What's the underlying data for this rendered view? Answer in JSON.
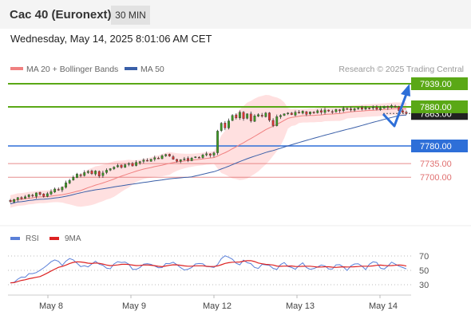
{
  "header": {
    "title": "Cac 40 (Euronext)",
    "interval": "30 MIN"
  },
  "datetime": "Wednesday, May 14, 2025 8:01:06 AM CET",
  "legend": {
    "ma20": "MA 20 + Bollinger Bands",
    "ma50": "MA 50",
    "credit": "Research © 2025 Trading Central"
  },
  "colors": {
    "ma20": "#f08080",
    "ma50": "#3a5fa8",
    "band": "#ffd5d5",
    "resistance": "#5aa816",
    "support": "#2e6fd8",
    "support_light": "#e07070",
    "rsi": "#5a7fd8",
    "rsi_ma": "#dd2222",
    "arrow": "#2e6fd8"
  },
  "chart_data": [
    {
      "type": "candlestick",
      "x_labels": [
        "May 8",
        "May 9",
        "May 12",
        "May 13",
        "May 14"
      ],
      "ylim": [
        7640,
        7960
      ],
      "levels": [
        {
          "value": 7939.0,
          "label": "7939.00",
          "style": "resistance"
        },
        {
          "value": 7880.0,
          "label": "7880.00",
          "style": "resistance"
        },
        {
          "value": 7863.0,
          "label": "7863.00",
          "style": "current"
        },
        {
          "value": 7780.0,
          "label": "7780.00",
          "style": "support"
        },
        {
          "value": 7735.0,
          "label": "7735.00",
          "style": "support_light"
        },
        {
          "value": 7700.0,
          "label": "7700.00",
          "style": "support_light"
        }
      ],
      "closes": [
        7638,
        7643,
        7648,
        7645,
        7650,
        7655,
        7652,
        7660,
        7656,
        7651,
        7658,
        7663,
        7670,
        7668,
        7675,
        7686,
        7692,
        7700,
        7708,
        7704,
        7712,
        7715,
        7709,
        7716,
        7703,
        7711,
        7718,
        7722,
        7726,
        7730,
        7725,
        7732,
        7735,
        7729,
        7738,
        7740,
        7744,
        7742,
        7746,
        7750,
        7748,
        7755,
        7758,
        7754,
        7746,
        7741,
        7745,
        7747,
        7743,
        7749,
        7752,
        7750,
        7757,
        7760,
        7756,
        7762,
        7818,
        7838,
        7826,
        7844,
        7858,
        7852,
        7866,
        7850,
        7862,
        7844,
        7857,
        7860,
        7856,
        7864,
        7846,
        7832,
        7855,
        7858,
        7862,
        7864,
        7860,
        7866,
        7864,
        7869,
        7861,
        7867,
        7864,
        7870,
        7866,
        7872,
        7869,
        7866,
        7873,
        7870,
        7876,
        7874,
        7872,
        7875,
        7877,
        7874,
        7878,
        7876,
        7879,
        7874,
        7877,
        7881,
        7878,
        7883,
        7880,
        7870,
        7866,
        7863
      ]
    },
    {
      "type": "line",
      "title": "RSI",
      "series": [
        {
          "name": "RSI"
        },
        {
          "name": "9MA"
        }
      ],
      "ylim": [
        20,
        80
      ],
      "yticks": [
        70,
        50,
        30
      ]
    }
  ]
}
